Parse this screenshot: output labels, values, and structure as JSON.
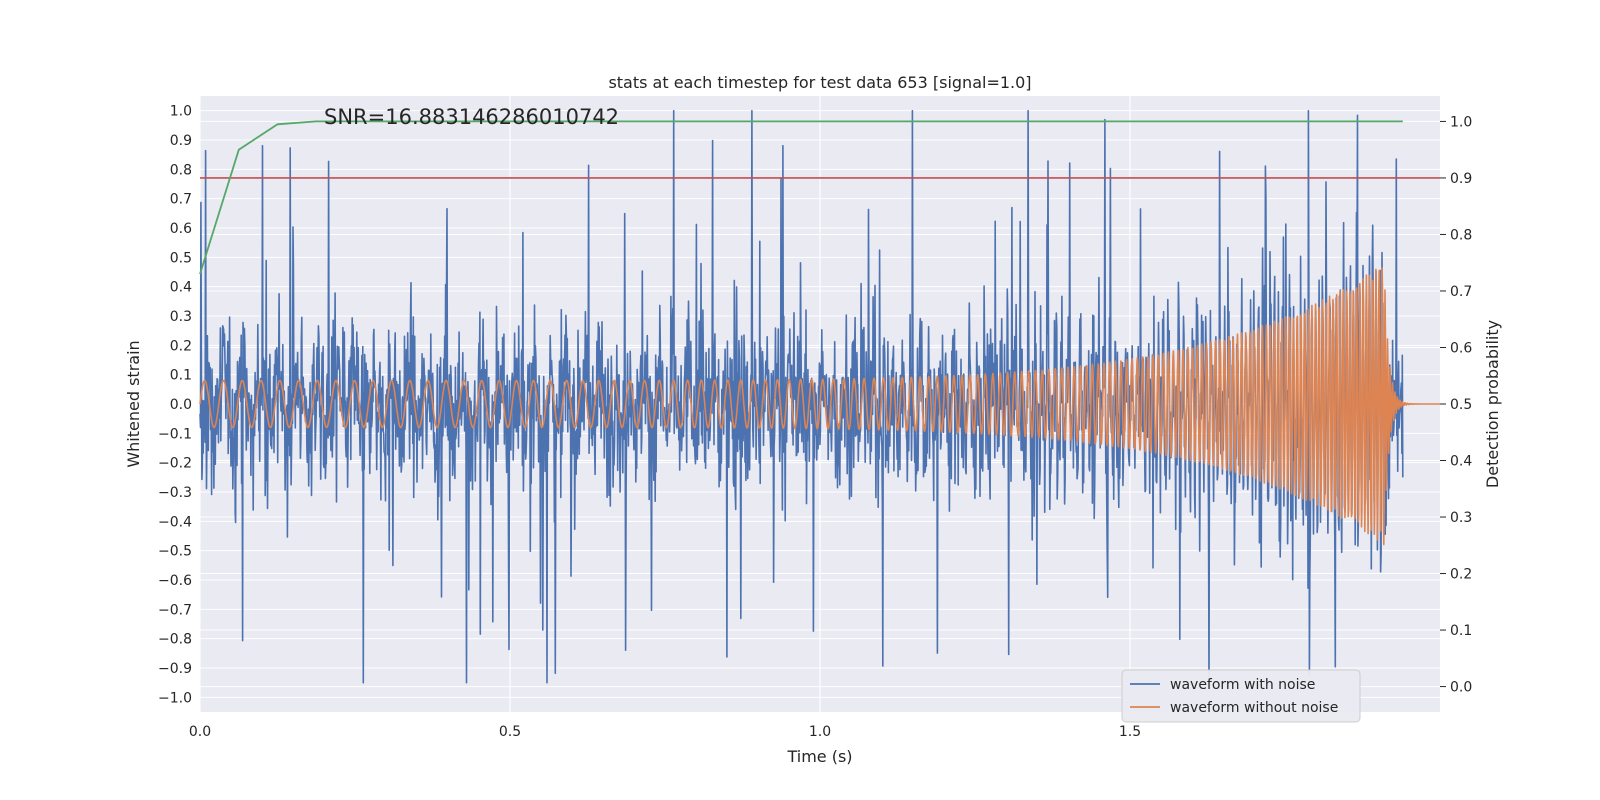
{
  "chart_data": {
    "type": "line",
    "title": "stats at each timestep for test data 653 [signal=1.0]",
    "annotation": "SNR=16.883146286010742",
    "xlabel": "Time (s)",
    "ylabel": "Whitened strain",
    "y2label": "Detection probability",
    "xlim": [
      0.0,
      2.0
    ],
    "ylim": [
      -1.05,
      1.05
    ],
    "y2lim": [
      -0.045,
      1.045
    ],
    "xticks": [
      "0.0",
      "0.5",
      "1.0",
      "1.5"
    ],
    "yticks": [
      "1.0",
      "0.9",
      "0.8",
      "0.7",
      "0.6",
      "0.5",
      "0.4",
      "0.3",
      "0.2",
      "0.1",
      "0.0",
      "−0.1",
      "−0.2",
      "−0.3",
      "−0.4",
      "−0.5",
      "−0.6",
      "−0.7",
      "−0.8",
      "−0.9",
      "−1.0"
    ],
    "y2ticks": [
      "1.0",
      "0.9",
      "0.8",
      "0.7",
      "0.6",
      "0.5",
      "0.4",
      "0.3",
      "0.2",
      "0.1",
      "0.0"
    ],
    "threshold": 0.9,
    "series": [
      {
        "name": "waveform with noise",
        "color": "#4c72b0",
        "axis": "left",
        "description": "whitened noisy strain, amplitude up to about ±1.0, 0 to 1.94 s"
      },
      {
        "name": "waveform without noise",
        "color": "#dd8452",
        "axis": "left",
        "description": "chirp signal, amplitude about 0.08 rising to 0.48 at merger near 1.91 s"
      },
      {
        "name": "detection probability",
        "color": "#55a868",
        "axis": "right",
        "x": [
          0.0,
          0.0625,
          0.125,
          0.1875,
          0.25,
          1.94
        ],
        "y": [
          0.73,
          0.95,
          0.995,
          1.0,
          1.0,
          1.0
        ]
      },
      {
        "name": "threshold",
        "color": "#c44e52",
        "axis": "right",
        "x": [
          0.0,
          2.0
        ],
        "y": [
          0.9,
          0.9
        ]
      }
    ],
    "legend": {
      "position": "lower-right",
      "entries": [
        {
          "label": "waveform with noise",
          "color": "#4c72b0"
        },
        {
          "label": "waveform without noise",
          "color": "#dd8452"
        }
      ]
    },
    "grid": true
  }
}
